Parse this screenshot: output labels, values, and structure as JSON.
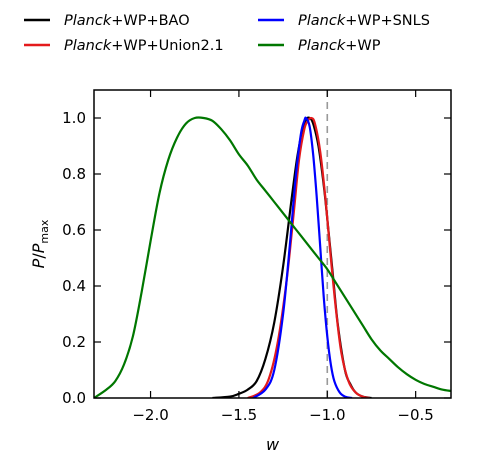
{
  "chart_data": {
    "type": "line",
    "xlabel": "w",
    "ylabel": {
      "main": "P",
      "sep": "/",
      "sub_base": "P",
      "sub": "max"
    },
    "xlim": [
      -2.32,
      -0.3
    ],
    "ylim": [
      0.0,
      1.1
    ],
    "xticks": [
      -2.0,
      -1.5,
      -1.0,
      -0.5
    ],
    "xtick_labels": [
      "−2.0",
      "−1.5",
      "−1.0",
      "−0.5"
    ],
    "yticks": [
      0.0,
      0.2,
      0.4,
      0.6,
      0.8,
      1.0
    ],
    "ytick_labels": [
      "0.0",
      "0.2",
      "0.4",
      "0.6",
      "0.8",
      "1.0"
    ],
    "grid": false,
    "legend_position": "top",
    "reference_line": {
      "x": -1.0,
      "style": "dashed",
      "color": "#999999"
    },
    "series": [
      {
        "name_italic": "Planck",
        "name_rest": "+WP+BAO",
        "color": "#000000",
        "x": [
          -1.65,
          -1.55,
          -1.5,
          -1.45,
          -1.4,
          -1.35,
          -1.3,
          -1.25,
          -1.2,
          -1.17,
          -1.14,
          -1.12,
          -1.1,
          -1.08,
          -1.05,
          -1.02,
          -1.0,
          -0.97,
          -0.94,
          -0.9,
          -0.87,
          -0.84,
          -0.8,
          -0.75
        ],
        "y": [
          0.0,
          0.005,
          0.015,
          0.03,
          0.06,
          0.14,
          0.27,
          0.47,
          0.72,
          0.86,
          0.96,
          0.995,
          1.0,
          0.98,
          0.9,
          0.76,
          0.64,
          0.45,
          0.26,
          0.1,
          0.05,
          0.02,
          0.005,
          0.0
        ]
      },
      {
        "name_italic": "Planck",
        "name_rest": "+WP+Union2.1",
        "color": "#e41a1c",
        "x": [
          -1.45,
          -1.38,
          -1.33,
          -1.28,
          -1.23,
          -1.19,
          -1.16,
          -1.13,
          -1.11,
          -1.09,
          -1.07,
          -1.04,
          -1.01,
          -0.98,
          -0.95,
          -0.92,
          -0.88,
          -0.84,
          -0.8,
          -0.76
        ],
        "y": [
          0.0,
          0.02,
          0.07,
          0.2,
          0.42,
          0.66,
          0.85,
          0.96,
          0.99,
          1.0,
          0.98,
          0.88,
          0.71,
          0.5,
          0.31,
          0.16,
          0.06,
          0.02,
          0.005,
          0.0
        ]
      },
      {
        "name_italic": "Planck",
        "name_rest": "+WP+SNLS",
        "color": "#0000ff",
        "x": [
          -1.42,
          -1.35,
          -1.3,
          -1.25,
          -1.21,
          -1.18,
          -1.15,
          -1.13,
          -1.12,
          -1.1,
          -1.08,
          -1.06,
          -1.04,
          -1.02,
          -1.0,
          -0.98,
          -0.96,
          -0.93,
          -0.9,
          -0.86
        ],
        "y": [
          0.0,
          0.03,
          0.1,
          0.3,
          0.56,
          0.78,
          0.94,
          0.99,
          1.0,
          0.97,
          0.87,
          0.72,
          0.54,
          0.36,
          0.22,
          0.12,
          0.06,
          0.02,
          0.005,
          0.0
        ]
      },
      {
        "name_italic": "Planck",
        "name_rest": "+WP",
        "color": "#007700",
        "x": [
          -2.32,
          -2.25,
          -2.2,
          -2.15,
          -2.1,
          -2.05,
          -2.0,
          -1.95,
          -1.9,
          -1.85,
          -1.8,
          -1.75,
          -1.7,
          -1.65,
          -1.6,
          -1.55,
          -1.5,
          -1.45,
          -1.4,
          -1.35,
          -1.3,
          -1.25,
          -1.2,
          -1.15,
          -1.1,
          -1.05,
          -1.0,
          -0.95,
          -0.9,
          -0.85,
          -0.8,
          -0.75,
          -0.7,
          -0.65,
          -0.6,
          -0.55,
          -0.5,
          -0.45,
          -0.4,
          -0.35,
          -0.3
        ],
        "y": [
          0.0,
          0.03,
          0.06,
          0.12,
          0.22,
          0.38,
          0.56,
          0.73,
          0.85,
          0.93,
          0.98,
          1.0,
          1.0,
          0.99,
          0.96,
          0.92,
          0.87,
          0.83,
          0.78,
          0.74,
          0.7,
          0.66,
          0.62,
          0.58,
          0.54,
          0.5,
          0.46,
          0.41,
          0.36,
          0.31,
          0.26,
          0.21,
          0.17,
          0.14,
          0.11,
          0.085,
          0.065,
          0.05,
          0.04,
          0.03,
          0.025
        ]
      }
    ]
  }
}
